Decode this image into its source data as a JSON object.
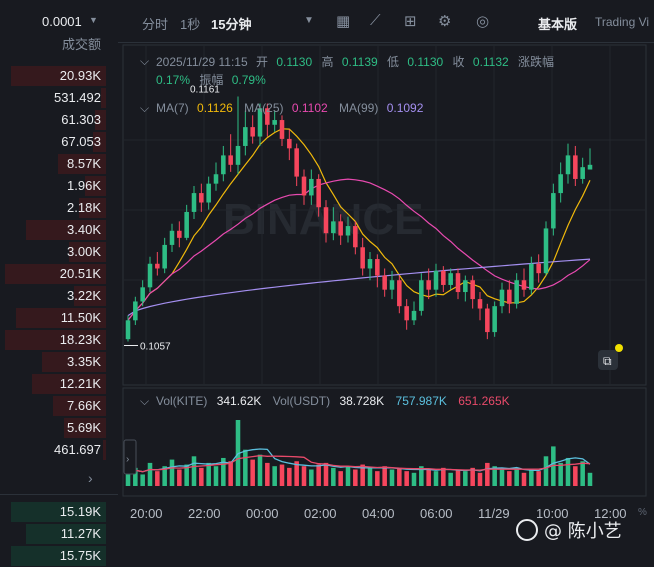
{
  "order_book": {
    "depth_value": "0.0001",
    "column_label": "成交额",
    "rows": [
      {
        "text": "20.93K",
        "fill": 0.9,
        "side": "sell"
      },
      {
        "text": "531.492",
        "fill": 0.05,
        "side": "sell"
      },
      {
        "text": "61.303",
        "fill": 0.1,
        "side": "sell"
      },
      {
        "text": "67.053",
        "fill": 0.12,
        "side": "sell"
      },
      {
        "text": "8.57K",
        "fill": 0.45,
        "side": "sell"
      },
      {
        "text": "1.96K",
        "fill": 0.2,
        "side": "sell"
      },
      {
        "text": "2.18K",
        "fill": 0.25,
        "side": "sell"
      },
      {
        "text": "3.40K",
        "fill": 0.75,
        "side": "sell"
      },
      {
        "text": "3.00K",
        "fill": 0.35,
        "side": "sell"
      },
      {
        "text": "20.51K",
        "fill": 0.95,
        "side": "sell"
      },
      {
        "text": "3.22K",
        "fill": 0.3,
        "side": "sell"
      },
      {
        "text": "11.50K",
        "fill": 0.85,
        "side": "sell"
      },
      {
        "text": "18.23K",
        "fill": 0.95,
        "side": "sell"
      },
      {
        "text": "3.35K",
        "fill": 0.6,
        "side": "sell"
      },
      {
        "text": "12.21K",
        "fill": 0.7,
        "side": "sell"
      },
      {
        "text": "7.66K",
        "fill": 0.5,
        "side": "sell"
      },
      {
        "text": "5.69K",
        "fill": 0.4,
        "side": "sell"
      },
      {
        "text": "461.697",
        "fill": 0.03,
        "side": "sell"
      }
    ],
    "buy_rows": [
      {
        "text": "15.19K",
        "fill": 0.9,
        "side": "buy"
      },
      {
        "text": "11.27K",
        "fill": 0.75,
        "side": "buy"
      },
      {
        "text": "15.75K",
        "fill": 0.9,
        "side": "buy"
      }
    ],
    "sell_color": "#35191d",
    "buy_color": "#15302a"
  },
  "toolbar": {
    "items": [
      "分时",
      "1秒",
      "15分钟"
    ],
    "active": "15分钟",
    "basic_label": "基本版",
    "tv_label": "Trading Vi"
  },
  "ohlc": {
    "date": "2025/11/29 11:15",
    "open_label": "开",
    "open": "0.1130",
    "high_label": "高",
    "high": "0.1139",
    "low_label": "低",
    "low": "0.1130",
    "close_label": "收",
    "close": "0.1132",
    "change_label": "涨跌幅",
    "change": "0.17%",
    "amp_label": "振幅",
    "amp": "0.79%"
  },
  "ma": {
    "ma7_label": "MA(7)",
    "ma7": "0.1126",
    "ma7_color": "#f0b90b",
    "ma25_label": "MA(25)",
    "ma25": "0.1102",
    "ma25_color": "#e84ab0",
    "ma99_label": "MA(99)",
    "ma99": "0.1092",
    "ma99_color": "#a48ff0"
  },
  "vol_legend": {
    "kite_label": "Vol(KITE)",
    "kite": "341.62K",
    "usdt_label": "Vol(USDT)",
    "usdt": "38.728K",
    "ma_a": "757.987K",
    "ma_a_color": "#5bc0de",
    "ma_b": "651.265K",
    "ma_b_color": "#e84a6a"
  },
  "watermark": "BINANCE",
  "author": "@ 陈小艺",
  "chart_data": {
    "type": "candlestick",
    "interval": "15分钟",
    "up_color": "#2ebd85",
    "down_color": "#f6465d",
    "high_annotation": "0.1161",
    "low_annotation": "0.1057",
    "x_ticks": [
      "20:00",
      "22:00",
      "00:00",
      "02:00",
      "04:00",
      "06:00",
      "11/29",
      "10:00",
      "12:00"
    ],
    "candles": [
      [
        0.1058,
        0.1066,
        0.1068,
        0.1057
      ],
      [
        0.1066,
        0.1074,
        0.1076,
        0.1064
      ],
      [
        0.1074,
        0.108,
        0.1083,
        0.1072
      ],
      [
        0.108,
        0.109,
        0.1093,
        0.1078
      ],
      [
        0.109,
        0.1088,
        0.1095,
        0.1085
      ],
      [
        0.1088,
        0.1098,
        0.1101,
        0.1086
      ],
      [
        0.1098,
        0.1104,
        0.1107,
        0.1095
      ],
      [
        0.1104,
        0.1101,
        0.1108,
        0.1097
      ],
      [
        0.1101,
        0.1112,
        0.1115,
        0.11
      ],
      [
        0.1112,
        0.112,
        0.1123,
        0.1109
      ],
      [
        0.112,
        0.1116,
        0.1124,
        0.1112
      ],
      [
        0.1116,
        0.1124,
        0.1127,
        0.1113
      ],
      [
        0.1124,
        0.1128,
        0.1133,
        0.1121
      ],
      [
        0.1128,
        0.1136,
        0.114,
        0.1125
      ],
      [
        0.1136,
        0.1132,
        0.1145,
        0.1129
      ],
      [
        0.1132,
        0.114,
        0.1161,
        0.1128
      ],
      [
        0.114,
        0.1148,
        0.1155,
        0.1136
      ],
      [
        0.1148,
        0.1144,
        0.1153,
        0.1141
      ],
      [
        0.1144,
        0.1156,
        0.1158,
        0.114
      ],
      [
        0.1156,
        0.1149,
        0.1158,
        0.1144
      ],
      [
        0.1149,
        0.1151,
        0.1155,
        0.1146
      ],
      [
        0.1151,
        0.1143,
        0.1153,
        0.114
      ],
      [
        0.1143,
        0.1139,
        0.1147,
        0.1134
      ],
      [
        0.1139,
        0.1127,
        0.1141,
        0.1123
      ],
      [
        0.1127,
        0.1119,
        0.113,
        0.1115
      ],
      [
        0.1119,
        0.1126,
        0.113,
        0.1115
      ],
      [
        0.1126,
        0.1114,
        0.1128,
        0.111
      ],
      [
        0.1114,
        0.1103,
        0.1117,
        0.1099
      ],
      [
        0.1103,
        0.1108,
        0.1114,
        0.11
      ],
      [
        0.1108,
        0.1102,
        0.1111,
        0.1098
      ],
      [
        0.1102,
        0.1106,
        0.111,
        0.1099
      ],
      [
        0.1106,
        0.1097,
        0.1108,
        0.1094
      ],
      [
        0.1097,
        0.1088,
        0.1101,
        0.1085
      ],
      [
        0.1088,
        0.1092,
        0.1095,
        0.1083
      ],
      [
        0.1092,
        0.1085,
        0.1094,
        0.108
      ],
      [
        0.1085,
        0.1079,
        0.1088,
        0.1076
      ],
      [
        0.1079,
        0.1083,
        0.1087,
        0.1075
      ],
      [
        0.1083,
        0.1072,
        0.1085,
        0.1069
      ],
      [
        0.1072,
        0.1066,
        0.1075,
        0.1062
      ],
      [
        0.1066,
        0.107,
        0.1074,
        0.1064
      ],
      [
        0.107,
        0.1083,
        0.1086,
        0.1068
      ],
      [
        0.1083,
        0.1079,
        0.1088,
        0.1075
      ],
      [
        0.1079,
        0.1087,
        0.109,
        0.1076
      ],
      [
        0.1087,
        0.1081,
        0.1089,
        0.1078
      ],
      [
        0.1081,
        0.1086,
        0.1088,
        0.1079
      ],
      [
        0.1086,
        0.1078,
        0.1088,
        0.1075
      ],
      [
        0.1078,
        0.1083,
        0.1085,
        0.1074
      ],
      [
        0.1083,
        0.1075,
        0.1085,
        0.1071
      ],
      [
        0.1075,
        0.1071,
        0.1078,
        0.1066
      ],
      [
        0.1071,
        0.1061,
        0.1073,
        0.1058
      ],
      [
        0.1061,
        0.1072,
        0.1074,
        0.1059
      ],
      [
        0.1072,
        0.1079,
        0.1082,
        0.1069
      ],
      [
        0.1079,
        0.1073,
        0.1083,
        0.1069
      ],
      [
        0.1073,
        0.1083,
        0.1086,
        0.1071
      ],
      [
        0.1083,
        0.1079,
        0.1088,
        0.1076
      ],
      [
        0.1079,
        0.109,
        0.1093,
        0.1077
      ],
      [
        0.109,
        0.1086,
        0.1094,
        0.1082
      ],
      [
        0.1086,
        0.1105,
        0.1108,
        0.1085
      ],
      [
        0.1105,
        0.112,
        0.1124,
        0.1102
      ],
      [
        0.112,
        0.1128,
        0.1133,
        0.1116
      ],
      [
        0.1128,
        0.1136,
        0.1141,
        0.1124
      ],
      [
        0.1136,
        0.1126,
        0.114,
        0.1123
      ],
      [
        0.1126,
        0.1131,
        0.1135,
        0.1124
      ],
      [
        0.113,
        0.1132,
        0.1139,
        0.113
      ]
    ],
    "volumes": [
      40,
      55,
      35,
      70,
      45,
      60,
      80,
      50,
      65,
      90,
      55,
      70,
      60,
      85,
      75,
      200,
      110,
      80,
      95,
      70,
      60,
      65,
      55,
      75,
      60,
      50,
      65,
      70,
      55,
      45,
      60,
      50,
      65,
      55,
      45,
      60,
      50,
      55,
      45,
      40,
      60,
      50,
      45,
      55,
      40,
      50,
      45,
      55,
      40,
      70,
      60,
      50,
      45,
      55,
      40,
      50,
      45,
      90,
      120,
      70,
      85,
      60,
      75,
      40
    ]
  }
}
